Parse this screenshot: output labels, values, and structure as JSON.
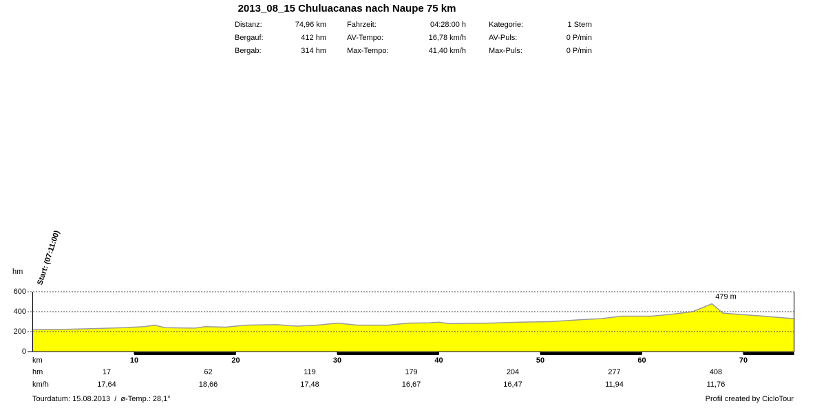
{
  "header": {
    "title": "2013_08_15 Chuluacanas nach Naupe 75 km",
    "stats": [
      [
        "Distanz:",
        "74,96 km",
        "Fahrzeit:",
        "04:28:00 h",
        "Kategorie:",
        "1 Stern"
      ],
      [
        "Bergauf:",
        "412 hm",
        "AV-Tempo:",
        "16,78 km/h",
        "AV-Puls:",
        "0 P/min"
      ],
      [
        "Bergab:",
        "314 hm",
        "Max-Tempo:",
        "41,40 km/h",
        "Max-Puls:",
        "0 P/min"
      ]
    ]
  },
  "chart_data": {
    "type": "area",
    "x_label": "km",
    "y_label": "hm",
    "start_label": "Start: (07:11:00)",
    "x": [
      0,
      3,
      6,
      9,
      11,
      12,
      13,
      16,
      17,
      19,
      21,
      24,
      26,
      28,
      30,
      32,
      35,
      37,
      39,
      40,
      41,
      45,
      48,
      51,
      54,
      56,
      58,
      61,
      63,
      65,
      66.9,
      68,
      70,
      72,
      75
    ],
    "values": [
      220,
      222,
      230,
      240,
      250,
      265,
      240,
      235,
      250,
      245,
      265,
      270,
      255,
      265,
      285,
      265,
      265,
      285,
      288,
      295,
      280,
      285,
      295,
      300,
      320,
      330,
      355,
      355,
      375,
      400,
      479,
      385,
      370,
      355,
      330
    ],
    "color": "#ffff00",
    "line_color": "#9a9a9a",
    "xlim": [
      0,
      75
    ],
    "ylim": [
      0,
      600
    ],
    "xticks": [
      10,
      20,
      30,
      40,
      50,
      60,
      70
    ],
    "yticks": [
      0,
      200,
      400,
      600
    ],
    "grid": true,
    "annotations": [
      {
        "text": "479 m",
        "x": 66.9,
        "y": 479
      }
    ],
    "table_rows": [
      {
        "name": "hm",
        "color": "#cc0000",
        "values": [
          17,
          62,
          119,
          179,
          204,
          277,
          408
        ]
      },
      {
        "name": "km/h",
        "color": "#000000",
        "values": [
          17.64,
          18.66,
          17.48,
          16.67,
          16.47,
          11.94,
          11.76
        ],
        "value_labels": [
          "17,64",
          "18,66",
          "17,48",
          "16,67",
          "16,47",
          "11,94",
          "11,76"
        ]
      }
    ],
    "footer_left": "Tourdatum: 15.08.2013  /  ø-Temp.: 28,1°",
    "footer_right": "Profil created by CicloTour"
  }
}
